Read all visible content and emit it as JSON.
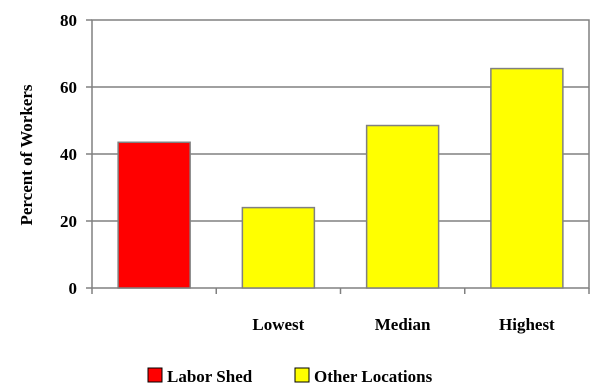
{
  "chart_data": {
    "type": "bar",
    "title": "",
    "xlabel": "",
    "ylabel": "Percent of Workers",
    "ylim": [
      0,
      80
    ],
    "yticks": [
      0,
      20,
      40,
      60,
      80
    ],
    "grid": true,
    "legend_position": "bottom",
    "categories": [
      "",
      "Lowest",
      "Median",
      "Highest"
    ],
    "values": [
      43.5,
      24,
      48.5,
      65.5
    ],
    "series": [
      {
        "name": "Labor Shed",
        "color": "#ff0000",
        "indices": [
          0
        ]
      },
      {
        "name": "Other Locations",
        "color": "#ffff00",
        "indices": [
          1,
          2,
          3
        ]
      }
    ]
  }
}
